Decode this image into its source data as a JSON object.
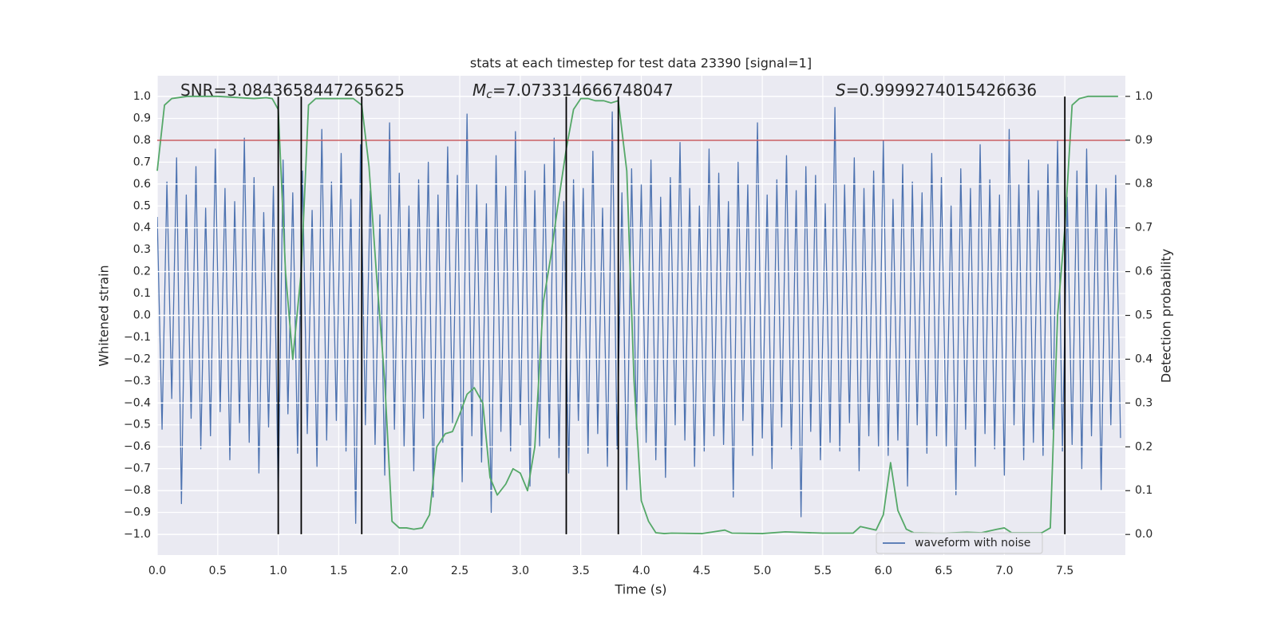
{
  "chart_data": {
    "type": "line",
    "title": "stats at each timestep for test data 23390 [signal=1]",
    "xlabel": "Time (s)",
    "ylabel": "Whitened strain",
    "y2label": "Detection probability",
    "annotations": [
      {
        "text": "SNR=3.0843658447265625"
      },
      {
        "symbol": "M",
        "subscript": "c",
        "text": "=7.073314666748047"
      },
      {
        "symbol": "S",
        "text": "=0.9999274015426636"
      }
    ],
    "xlim": [
      0,
      8
    ],
    "ylim": [
      -1.095,
      1.095
    ],
    "y2lim": [
      -0.047,
      1.047
    ],
    "xticks": [
      {
        "value": 0,
        "label": "0.0"
      },
      0.5,
      {
        "value": 1,
        "label": "1.0"
      },
      1.5,
      {
        "value": 2,
        "label": "2.0"
      },
      2.5,
      {
        "value": 3,
        "label": "3.0"
      },
      3.5,
      {
        "value": 4,
        "label": "4.0"
      },
      4.5,
      {
        "value": 5,
        "label": "5.0"
      },
      5.5,
      {
        "value": 6,
        "label": "6.0"
      },
      6.5,
      {
        "value": 7,
        "label": "7.0"
      },
      7.5
    ],
    "yticks": [
      {
        "value": -1,
        "label": "−1.0"
      },
      {
        "value": -0.9,
        "label": "−0.9"
      },
      {
        "value": -0.8,
        "label": "−0.8"
      },
      {
        "value": -0.7,
        "label": "−0.7"
      },
      {
        "value": -0.6,
        "label": "−0.6"
      },
      {
        "value": -0.5,
        "label": "−0.5"
      },
      {
        "value": -0.4,
        "label": "−0.4"
      },
      {
        "value": -0.3,
        "label": "−0.3"
      },
      {
        "value": -0.2,
        "label": "−0.2"
      },
      {
        "value": -0.1,
        "label": "−0.1"
      },
      {
        "value": 0,
        "label": "0.0"
      },
      0.1,
      0.2,
      0.3,
      0.4,
      0.5,
      0.6,
      0.7,
      0.8,
      0.9,
      {
        "value": 1,
        "label": "1.0"
      }
    ],
    "y2ticks": [
      {
        "value": 0,
        "label": "0.0"
      },
      0.1,
      0.2,
      0.3,
      0.4,
      0.5,
      0.6,
      0.7,
      0.8,
      0.9,
      {
        "value": 1,
        "label": "1.0"
      }
    ],
    "grid": true,
    "legend": "lower right",
    "hline": {
      "y": 0.8,
      "color": "#c44e52"
    },
    "vlines": {
      "x": [
        1.0,
        1.19,
        1.69,
        3.38,
        3.81,
        7.5
      ],
      "ymin": -1,
      "ymax": 1,
      "color": "#000000"
    },
    "series": [
      {
        "name": "waveform with noise",
        "color": "#4c72b0",
        "x": [
          0,
          0.04,
          0.08,
          0.12,
          0.16,
          0.2,
          0.24,
          0.28,
          0.32,
          0.36,
          0.4,
          0.44,
          0.48,
          0.52,
          0.56,
          0.6,
          0.64,
          0.68,
          0.72,
          0.76,
          0.8,
          0.84,
          0.88,
          0.92,
          0.96,
          1,
          1.04,
          1.08,
          1.12,
          1.16,
          1.2,
          1.24,
          1.28,
          1.32,
          1.36,
          1.4,
          1.44,
          1.48,
          1.52,
          1.56,
          1.6,
          1.64,
          1.68,
          1.72,
          1.76,
          1.8,
          1.84,
          1.88,
          1.92,
          1.96,
          2,
          2.04,
          2.08,
          2.12,
          2.16,
          2.2,
          2.24,
          2.28,
          2.32,
          2.36,
          2.4,
          2.44,
          2.48,
          2.52,
          2.56,
          2.6,
          2.64,
          2.68,
          2.72,
          2.76,
          2.8,
          2.84,
          2.88,
          2.92,
          2.96,
          3,
          3.04,
          3.08,
          3.12,
          3.16,
          3.2,
          3.24,
          3.28,
          3.32,
          3.36,
          3.4,
          3.44,
          3.48,
          3.52,
          3.56,
          3.6,
          3.64,
          3.68,
          3.72,
          3.76,
          3.8,
          3.84,
          3.88,
          3.92,
          3.96,
          4,
          4.04,
          4.08,
          4.12,
          4.16,
          4.2,
          4.24,
          4.28,
          4.32,
          4.36,
          4.4,
          4.44,
          4.48,
          4.52,
          4.56,
          4.6,
          4.64,
          4.68,
          4.72,
          4.76,
          4.8,
          4.84,
          4.88,
          4.92,
          4.96,
          5,
          5.04,
          5.08,
          5.12,
          5.16,
          5.2,
          5.24,
          5.28,
          5.32,
          5.36,
          5.4,
          5.44,
          5.48,
          5.52,
          5.56,
          5.6,
          5.64,
          5.68,
          5.72,
          5.76,
          5.8,
          5.84,
          5.88,
          5.92,
          5.96,
          6,
          6.04,
          6.08,
          6.12,
          6.16,
          6.2,
          6.24,
          6.28,
          6.32,
          6.36,
          6.4,
          6.44,
          6.48,
          6.52,
          6.56,
          6.6,
          6.64,
          6.68,
          6.72,
          6.76,
          6.8,
          6.84,
          6.88,
          6.92,
          6.96,
          7,
          7.04,
          7.08,
          7.12,
          7.16,
          7.2,
          7.24,
          7.28,
          7.32,
          7.36,
          7.4,
          7.44,
          7.48,
          7.52,
          7.56,
          7.6,
          7.64,
          7.68,
          7.72,
          7.76,
          7.8,
          7.84,
          7.88,
          7.92,
          7.96
        ],
        "values": [
          0.45,
          -0.52,
          0.61,
          -0.38,
          0.72,
          -0.86,
          0.55,
          -0.47,
          0.68,
          -0.61,
          0.49,
          -0.55,
          0.76,
          -0.44,
          0.58,
          -0.66,
          0.52,
          -0.49,
          0.81,
          -0.58,
          0.63,
          -0.72,
          0.47,
          -0.51,
          0.59,
          -0.82,
          0.71,
          -0.45,
          0.56,
          -0.63,
          0.66,
          -0.54,
          0.48,
          -0.69,
          0.85,
          -0.57,
          0.61,
          -0.48,
          0.74,
          -0.62,
          0.53,
          -0.95,
          0.78,
          -0.5,
          0.57,
          -0.59,
          0.46,
          -0.73,
          0.88,
          -0.52,
          0.65,
          -0.6,
          0.5,
          -0.71,
          0.62,
          -0.47,
          0.7,
          -0.83,
          0.55,
          -0.58,
          0.77,
          -0.49,
          0.64,
          -0.76,
          0.92,
          -0.55,
          0.6,
          -0.67,
          0.51,
          -0.9,
          0.73,
          -0.53,
          0.59,
          -0.62,
          0.84,
          -0.5,
          0.66,
          -0.78,
          0.57,
          -0.6,
          0.69,
          -0.56,
          0.81,
          -0.65,
          0.52,
          -0.72,
          0.62,
          -0.48,
          0.58,
          -0.63,
          0.75,
          -0.54,
          0.49,
          -0.69,
          0.93,
          -0.61,
          0.56,
          -0.8,
          0.67,
          -0.52,
          0.6,
          -0.58,
          0.71,
          -0.66,
          0.54,
          -0.74,
          0.63,
          -0.5,
          0.79,
          -0.57,
          0.58,
          -0.69,
          0.5,
          -0.62,
          0.76,
          -0.55,
          0.65,
          -0.59,
          0.52,
          -0.83,
          0.7,
          -0.48,
          0.6,
          -0.64,
          0.88,
          -0.56,
          0.55,
          -0.7,
          0.62,
          -0.51,
          0.73,
          -0.61,
          0.57,
          -0.92,
          0.68,
          -0.53,
          0.64,
          -0.66,
          0.51,
          -0.58,
          0.95,
          -0.62,
          0.6,
          -0.49,
          0.72,
          -0.71,
          0.58,
          -0.55,
          0.66,
          -0.6,
          0.8,
          -0.64,
          0.53,
          -0.57,
          0.69,
          -0.78,
          0.61,
          -0.5,
          0.56,
          -0.63,
          0.74,
          -0.55,
          0.63,
          -0.6,
          0.5,
          -0.82,
          0.67,
          -0.52,
          0.58,
          -0.69,
          0.78,
          -0.54,
          0.62,
          -0.61,
          0.55,
          -0.73,
          0.85,
          -0.5,
          0.6,
          -0.66,
          0.71,
          -0.58,
          0.57,
          -0.64,
          0.69,
          -0.52,
          0.8,
          -0.62,
          0.54,
          -0.59,
          0.66,
          -0.7,
          0.76,
          -0.55,
          0.6,
          -0.8,
          0.58,
          -0.5,
          0.64,
          -0.56
        ]
      },
      {
        "color": "#55a868",
        "axis": "y2",
        "x": [
          0,
          0.06,
          0.12,
          0.25,
          0.5,
          0.8,
          0.9,
          0.95,
          1.0,
          1.06,
          1.12,
          1.19,
          1.25,
          1.31,
          1.62,
          1.69,
          1.75,
          1.81,
          1.88,
          1.94,
          2.0,
          2.06,
          2.12,
          2.19,
          2.25,
          2.31,
          2.38,
          2.44,
          2.5,
          2.56,
          2.62,
          2.69,
          2.75,
          2.81,
          2.88,
          2.94,
          3.0,
          3.06,
          3.12,
          3.19,
          3.25,
          3.31,
          3.38,
          3.44,
          3.5,
          3.56,
          3.62,
          3.69,
          3.75,
          3.81,
          3.88,
          3.94,
          4.0,
          4.06,
          4.12,
          4.19,
          4.25,
          4.5,
          4.69,
          4.75,
          5.0,
          5.19,
          5.5,
          5.75,
          5.81,
          5.94,
          6.0,
          6.06,
          6.12,
          6.19,
          6.25,
          6.5,
          6.69,
          6.81,
          6.94,
          7.0,
          7.06,
          7.31,
          7.38,
          7.44,
          7.5,
          7.56,
          7.62,
          7.69,
          7.94
        ],
        "values": [
          0.83,
          0.98,
          0.995,
          1.0,
          1.0,
          0.995,
          0.997,
          0.995,
          0.97,
          0.6,
          0.4,
          0.6,
          0.98,
          0.995,
          0.995,
          0.98,
          0.84,
          0.6,
          0.35,
          0.03,
          0.015,
          0.015,
          0.012,
          0.015,
          0.045,
          0.2,
          0.23,
          0.235,
          0.275,
          0.32,
          0.335,
          0.3,
          0.13,
          0.09,
          0.115,
          0.15,
          0.14,
          0.1,
          0.2,
          0.53,
          0.63,
          0.75,
          0.88,
          0.97,
          0.995,
          0.995,
          0.99,
          0.99,
          0.985,
          0.99,
          0.83,
          0.35,
          0.077,
          0.03,
          0.004,
          0.002,
          0.003,
          0.002,
          0.01,
          0.003,
          0.002,
          0.006,
          0.003,
          0.003,
          0.018,
          0.01,
          0.045,
          0.164,
          0.055,
          0.012,
          0.004,
          0.003,
          0.005,
          0.004,
          0.012,
          0.015,
          0.004,
          0.004,
          0.015,
          0.5,
          0.7,
          0.98,
          0.995,
          1.0,
          1.0
        ]
      }
    ]
  }
}
